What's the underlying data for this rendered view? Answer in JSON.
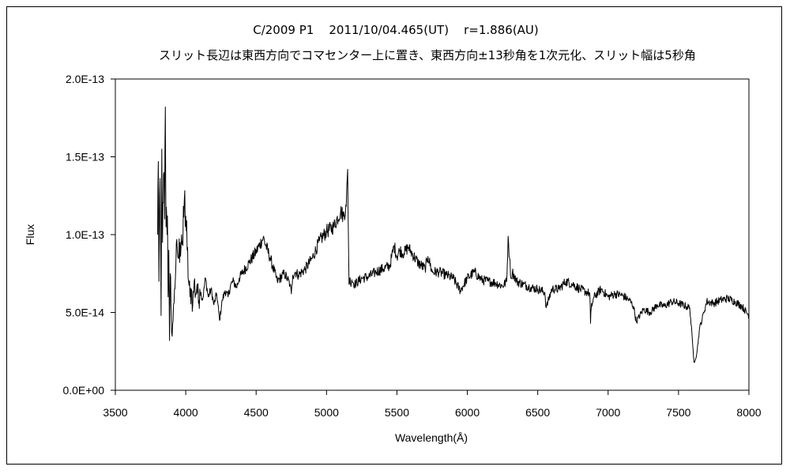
{
  "chart_data": {
    "type": "line",
    "title": "C/2009 P1    2011/10/04.465(UT)    r=1.886(AU)",
    "subtitle": "スリット長辺は東西方向でコマセンター上に置き、東西方向±13秒角を1次元化、スリット幅は5秒角",
    "xlabel": "Wavelength(Å)",
    "ylabel": "Flux",
    "xlim": [
      3500,
      8000
    ],
    "ylim": [
      0,
      2e-13
    ],
    "xticks": [
      3500,
      4000,
      4500,
      5000,
      5500,
      6000,
      6500,
      7000,
      7500,
      8000
    ],
    "xtick_labels": [
      "3500",
      "4000",
      "4500",
      "5000",
      "5500",
      "6000",
      "6500",
      "7000",
      "7500",
      "8000"
    ],
    "yticks": [
      0,
      5e-14,
      1e-13,
      1.5e-13,
      2e-13
    ],
    "ytick_labels": [
      "0.0E+00",
      "5.0E-14",
      "1.0E-13",
      "1.5E-13",
      "2.0E-13"
    ],
    "grid": false,
    "series": [
      {
        "color": "#000000",
        "x": [
          3800,
          3805,
          3810,
          3815,
          3820,
          3825,
          3830,
          3835,
          3840,
          3845,
          3850,
          3855,
          3860,
          3865,
          3870,
          3875,
          3880,
          3885,
          3890,
          3895,
          3900,
          3910,
          3920,
          3930,
          3940,
          3950,
          3960,
          3970,
          3980,
          3990,
          4000,
          4010,
          4020,
          4030,
          4040,
          4050,
          4060,
          4070,
          4080,
          4090,
          4100,
          4120,
          4140,
          4160,
          4180,
          4200,
          4220,
          4240,
          4260,
          4280,
          4300,
          4320,
          4340,
          4360,
          4380,
          4400,
          4450,
          4500,
          4550,
          4600,
          4650,
          4700,
          4720,
          4740,
          4750,
          4760,
          4780,
          4800,
          4850,
          4900,
          4950,
          5000,
          5050,
          5100,
          5120,
          5140,
          5150,
          5155,
          5160,
          5165,
          5170,
          5180,
          5200,
          5250,
          5300,
          5350,
          5400,
          5450,
          5480,
          5500,
          5520,
          5550,
          5580,
          5600,
          5650,
          5700,
          5720,
          5750,
          5800,
          5850,
          5900,
          5950,
          6000,
          6050,
          6100,
          6150,
          6200,
          6250,
          6280,
          6290,
          6300,
          6310,
          6320,
          6350,
          6400,
          6450,
          6500,
          6550,
          6560,
          6600,
          6650,
          6700,
          6750,
          6800,
          6850,
          6870,
          6875,
          6880,
          6900,
          6950,
          7000,
          7050,
          7100,
          7150,
          7180,
          7200,
          7250,
          7300,
          7350,
          7400,
          7450,
          7500,
          7550,
          7580,
          7600,
          7610,
          7620,
          7630,
          7650,
          7680,
          7700,
          7750,
          7800,
          7850,
          7900,
          7950,
          8000
        ],
        "y": [
          1e-13,
          1.47e-13,
          7e-14,
          1.25e-13,
          1.1e-13,
          4.8e-14,
          1.55e-13,
          9.5e-14,
          1.2e-13,
          1.4e-13,
          1.1e-13,
          1.82e-13,
          1.05e-13,
          1.1e-13,
          1.12e-13,
          6e-14,
          9e-14,
          3.2e-14,
          7.5e-14,
          5.5e-14,
          3.7e-14,
          4.5e-14,
          6.5e-14,
          8e-14,
          9e-14,
          8.5e-14,
          9.5e-14,
          1e-13,
          9.3e-14,
          1.22e-13,
          1.12e-13,
          9e-14,
          7e-14,
          6e-14,
          6.5e-14,
          5.5e-14,
          7e-14,
          6.2e-14,
          6.8e-14,
          5.6e-14,
          6.5e-14,
          5.8e-14,
          7.2e-14,
          6e-14,
          6.5e-14,
          5.5e-14,
          6.2e-14,
          4.5e-14,
          5.8e-14,
          6.4e-14,
          6e-14,
          6.8e-14,
          7e-14,
          6.6e-14,
          7.2e-14,
          7.5e-14,
          8.2e-14,
          8.9e-14,
          9.8e-14,
          8.5e-14,
          7e-14,
          7.5e-14,
          7.2e-14,
          6.8e-14,
          6.2e-14,
          7.4e-14,
          7.6e-14,
          7.4e-14,
          7.8e-14,
          8.5e-14,
          9.6e-14,
          1.02e-13,
          1.05e-13,
          1.15e-13,
          1.12e-13,
          1.18e-13,
          1.42e-13,
          1e-13,
          6.8e-14,
          7.2e-14,
          6.9e-14,
          7.1e-14,
          6.8e-14,
          7.2e-14,
          7.3e-14,
          7.6e-14,
          7.8e-14,
          8e-14,
          9.3e-14,
          8.6e-14,
          9e-14,
          8.8e-14,
          9.2e-14,
          8.9e-14,
          8.2e-14,
          7.8e-14,
          8.6e-14,
          7.6e-14,
          7.6e-14,
          7.4e-14,
          7.2e-14,
          6.4e-14,
          7.2e-14,
          7.6e-14,
          7.1e-14,
          7e-14,
          6.9e-14,
          6.7e-14,
          7e-14,
          9.9e-14,
          8.5e-14,
          7.2e-14,
          7.6e-14,
          7e-14,
          6.8e-14,
          6.6e-14,
          6.5e-14,
          6.3e-14,
          5.3e-14,
          6.5e-14,
          6.5e-14,
          7e-14,
          6.8e-14,
          6.5e-14,
          6.3e-14,
          6.2e-14,
          4.3e-14,
          5.3e-14,
          6e-14,
          6.5e-14,
          6e-14,
          6.2e-14,
          6.1e-14,
          5.8e-14,
          5.4e-14,
          4.4e-14,
          5.2e-14,
          5e-14,
          5.5e-14,
          5.4e-14,
          5.7e-14,
          5.6e-14,
          5.4e-14,
          5.3e-14,
          3e-14,
          1.8e-14,
          2e-14,
          2.4e-14,
          4e-14,
          5e-14,
          5.7e-14,
          5.6e-14,
          5.8e-14,
          5.9e-14,
          5.7e-14,
          5.4e-14,
          4.8e-14
        ]
      }
    ]
  }
}
